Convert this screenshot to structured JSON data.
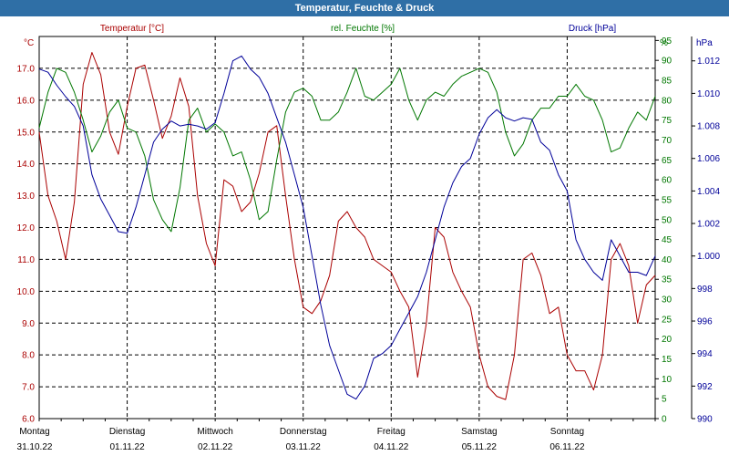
{
  "title": "Temperatur, Feuchte & Druck",
  "chart_data": {
    "type": "line",
    "title": "Temperatur, Feuchte & Druck",
    "x_labels": [
      {
        "day": "Montag",
        "date": "31.10.22"
      },
      {
        "day": "Dienstag",
        "date": "01.11.22"
      },
      {
        "day": "Mittwoch",
        "date": "02.11.22"
      },
      {
        "day": "Donnerstag",
        "date": "03.11.22"
      },
      {
        "day": "Freitag",
        "date": "04.11.22"
      },
      {
        "day": "Samstag",
        "date": "05.11.22"
      },
      {
        "day": "Sonntag",
        "date": "06.11.22"
      }
    ],
    "xlim": [
      0,
      7
    ],
    "grid": true,
    "axes": {
      "temperature": {
        "label": "Temperatur [°C]",
        "unit": "°C",
        "ylim": [
          6,
          18
        ],
        "ticks": [
          "6.0",
          "7.0",
          "8.0",
          "9.0",
          "10.0",
          "11.0",
          "12.0",
          "13.0",
          "14.0",
          "15.0",
          "16.0",
          "17.0"
        ],
        "color": "#aa0000"
      },
      "humidity": {
        "label": "rel. Feuchte [%]",
        "unit": "%",
        "ylim": [
          0,
          96
        ],
        "ticks": [
          "0",
          "5",
          "10",
          "15",
          "20",
          "25",
          "30",
          "35",
          "40",
          "45",
          "50",
          "55",
          "60",
          "65",
          "70",
          "75",
          "80",
          "85",
          "90",
          "95"
        ],
        "color": "#007700"
      },
      "pressure": {
        "label": "Druck [hPa]",
        "unit": "hPa",
        "ylim": [
          990,
          1013.5
        ],
        "ticks": [
          "990",
          "992",
          "994",
          "996",
          "998",
          "1.000",
          "1.002",
          "1.004",
          "1.006",
          "1.008",
          "1.010",
          "1.012"
        ],
        "color": "#000099"
      }
    },
    "series": [
      {
        "name": "Temperatur [°C]",
        "axis": "temperature",
        "color": "#aa0000",
        "points": [
          [
            0,
            15.0
          ],
          [
            0.1,
            13.0
          ],
          [
            0.2,
            12.2
          ],
          [
            0.3,
            11.0
          ],
          [
            0.4,
            12.8
          ],
          [
            0.5,
            16.5
          ],
          [
            0.6,
            17.5
          ],
          [
            0.7,
            16.8
          ],
          [
            0.8,
            15.0
          ],
          [
            0.9,
            14.3
          ],
          [
            1.0,
            15.8
          ],
          [
            1.1,
            17.0
          ],
          [
            1.2,
            17.1
          ],
          [
            1.3,
            16.0
          ],
          [
            1.4,
            14.8
          ],
          [
            1.5,
            15.5
          ],
          [
            1.6,
            16.7
          ],
          [
            1.7,
            15.8
          ],
          [
            1.8,
            13.0
          ],
          [
            1.9,
            11.5
          ],
          [
            2.0,
            10.8
          ],
          [
            2.1,
            13.5
          ],
          [
            2.2,
            13.3
          ],
          [
            2.3,
            12.5
          ],
          [
            2.4,
            12.8
          ],
          [
            2.5,
            13.7
          ],
          [
            2.6,
            15.0
          ],
          [
            2.7,
            15.2
          ],
          [
            2.8,
            13.0
          ],
          [
            2.9,
            11.0
          ],
          [
            3.0,
            9.5
          ],
          [
            3.1,
            9.3
          ],
          [
            3.2,
            9.7
          ],
          [
            3.3,
            10.5
          ],
          [
            3.4,
            12.2
          ],
          [
            3.5,
            12.5
          ],
          [
            3.6,
            12.0
          ],
          [
            3.7,
            11.7
          ],
          [
            3.8,
            11.0
          ],
          [
            3.9,
            10.8
          ],
          [
            4.0,
            10.6
          ],
          [
            4.1,
            10.0
          ],
          [
            4.2,
            9.5
          ],
          [
            4.3,
            7.3
          ],
          [
            4.4,
            9.0
          ],
          [
            4.5,
            12.0
          ],
          [
            4.6,
            11.7
          ],
          [
            4.7,
            10.6
          ],
          [
            4.8,
            10.0
          ],
          [
            4.9,
            9.5
          ],
          [
            5.0,
            8.0
          ],
          [
            5.1,
            7.0
          ],
          [
            5.2,
            6.7
          ],
          [
            5.3,
            6.6
          ],
          [
            5.4,
            8.0
          ],
          [
            5.5,
            11.0
          ],
          [
            5.6,
            11.2
          ],
          [
            5.7,
            10.5
          ],
          [
            5.8,
            9.3
          ],
          [
            5.9,
            9.5
          ],
          [
            6.0,
            8.0
          ],
          [
            6.1,
            7.5
          ],
          [
            6.2,
            7.5
          ],
          [
            6.3,
            6.9
          ],
          [
            6.4,
            8.0
          ],
          [
            6.5,
            11.0
          ],
          [
            6.6,
            11.5
          ],
          [
            6.7,
            10.8
          ],
          [
            6.8,
            9.0
          ],
          [
            6.9,
            10.2
          ],
          [
            7.0,
            10.5
          ]
        ]
      },
      {
        "name": "rel. Feuchte [%]",
        "axis": "humidity",
        "color": "#007700",
        "points": [
          [
            0,
            73
          ],
          [
            0.1,
            82
          ],
          [
            0.2,
            88
          ],
          [
            0.3,
            87
          ],
          [
            0.4,
            82
          ],
          [
            0.5,
            75
          ],
          [
            0.6,
            67
          ],
          [
            0.7,
            71
          ],
          [
            0.8,
            77
          ],
          [
            0.9,
            80
          ],
          [
            1.0,
            73
          ],
          [
            1.1,
            72
          ],
          [
            1.2,
            66
          ],
          [
            1.3,
            55
          ],
          [
            1.4,
            50
          ],
          [
            1.5,
            47
          ],
          [
            1.6,
            58
          ],
          [
            1.7,
            75
          ],
          [
            1.8,
            78
          ],
          [
            1.9,
            72
          ],
          [
            2.0,
            74
          ],
          [
            2.1,
            72
          ],
          [
            2.2,
            66
          ],
          [
            2.3,
            67
          ],
          [
            2.4,
            60
          ],
          [
            2.5,
            50
          ],
          [
            2.6,
            52
          ],
          [
            2.7,
            65
          ],
          [
            2.8,
            77
          ],
          [
            2.9,
            82
          ],
          [
            3.0,
            83
          ],
          [
            3.1,
            81
          ],
          [
            3.2,
            75
          ],
          [
            3.3,
            75
          ],
          [
            3.4,
            77
          ],
          [
            3.5,
            82
          ],
          [
            3.6,
            88
          ],
          [
            3.7,
            81
          ],
          [
            3.8,
            80
          ],
          [
            3.9,
            82
          ],
          [
            4.0,
            84
          ],
          [
            4.1,
            88
          ],
          [
            4.2,
            80
          ],
          [
            4.3,
            75
          ],
          [
            4.4,
            80
          ],
          [
            4.5,
            82
          ],
          [
            4.6,
            81
          ],
          [
            4.7,
            84
          ],
          [
            4.8,
            86
          ],
          [
            4.9,
            87
          ],
          [
            5.0,
            88
          ],
          [
            5.1,
            87
          ],
          [
            5.2,
            82
          ],
          [
            5.3,
            72
          ],
          [
            5.4,
            66
          ],
          [
            5.5,
            69
          ],
          [
            5.6,
            75
          ],
          [
            5.7,
            78
          ],
          [
            5.8,
            78
          ],
          [
            5.9,
            81
          ],
          [
            6.0,
            81
          ],
          [
            6.1,
            84
          ],
          [
            6.2,
            81
          ],
          [
            6.3,
            80
          ],
          [
            6.4,
            75
          ],
          [
            6.5,
            67
          ],
          [
            6.6,
            68
          ],
          [
            6.7,
            73
          ],
          [
            6.8,
            77
          ],
          [
            6.9,
            75
          ],
          [
            7.0,
            81
          ]
        ]
      },
      {
        "name": "Druck [hPa]",
        "axis": "pressure",
        "color": "#000099",
        "points": [
          [
            0,
            1011.5
          ],
          [
            0.1,
            1011.3
          ],
          [
            0.2,
            1010.5
          ],
          [
            0.3,
            1009.8
          ],
          [
            0.4,
            1009.2
          ],
          [
            0.5,
            1008.0
          ],
          [
            0.6,
            1005.0
          ],
          [
            0.7,
            1003.5
          ],
          [
            0.8,
            1002.5
          ],
          [
            0.9,
            1001.5
          ],
          [
            1.0,
            1001.4
          ],
          [
            1.1,
            1003.0
          ],
          [
            1.2,
            1005.0
          ],
          [
            1.3,
            1007.0
          ],
          [
            1.4,
            1007.8
          ],
          [
            1.5,
            1008.3
          ],
          [
            1.6,
            1008.0
          ],
          [
            1.7,
            1008.1
          ],
          [
            1.8,
            1008.0
          ],
          [
            1.9,
            1007.8
          ],
          [
            2.0,
            1008.2
          ],
          [
            2.1,
            1010.0
          ],
          [
            2.2,
            1012.0
          ],
          [
            2.3,
            1012.3
          ],
          [
            2.4,
            1011.5
          ],
          [
            2.5,
            1011.0
          ],
          [
            2.6,
            1010.0
          ],
          [
            2.7,
            1008.5
          ],
          [
            2.8,
            1007.0
          ],
          [
            2.9,
            1005.0
          ],
          [
            3.0,
            1003.0
          ],
          [
            3.1,
            1000.0
          ],
          [
            3.2,
            997.0
          ],
          [
            3.3,
            994.5
          ],
          [
            3.4,
            993.0
          ],
          [
            3.5,
            991.5
          ],
          [
            3.6,
            991.2
          ],
          [
            3.7,
            992.0
          ],
          [
            3.8,
            993.7
          ],
          [
            3.9,
            994.0
          ],
          [
            4.0,
            994.5
          ],
          [
            4.1,
            995.5
          ],
          [
            4.2,
            996.5
          ],
          [
            4.3,
            997.5
          ],
          [
            4.4,
            999.0
          ],
          [
            4.5,
            1001.0
          ],
          [
            4.6,
            1003.0
          ],
          [
            4.7,
            1004.5
          ],
          [
            4.8,
            1005.5
          ],
          [
            4.9,
            1006.0
          ],
          [
            5.0,
            1007.5
          ],
          [
            5.1,
            1008.5
          ],
          [
            5.2,
            1009.0
          ],
          [
            5.3,
            1008.5
          ],
          [
            5.4,
            1008.3
          ],
          [
            5.5,
            1008.5
          ],
          [
            5.6,
            1008.4
          ],
          [
            5.7,
            1007.0
          ],
          [
            5.8,
            1006.5
          ],
          [
            5.9,
            1005.0
          ],
          [
            6.0,
            1004.0
          ],
          [
            6.1,
            1001.0
          ],
          [
            6.2,
            999.8
          ],
          [
            6.3,
            999.0
          ],
          [
            6.4,
            998.5
          ],
          [
            6.5,
            1001.0
          ],
          [
            6.6,
            1000.0
          ],
          [
            6.7,
            999.0
          ],
          [
            6.8,
            999.0
          ],
          [
            6.9,
            998.8
          ],
          [
            7.0,
            1000.0
          ]
        ]
      }
    ]
  }
}
